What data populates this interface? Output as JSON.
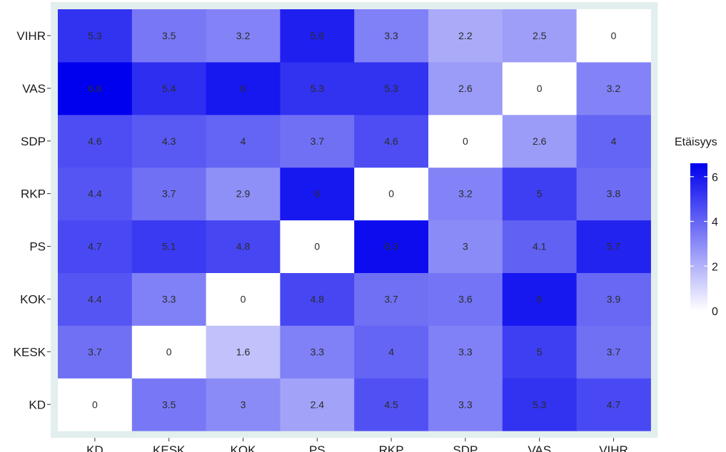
{
  "chart_data": {
    "type": "heatmap",
    "x": [
      "KD",
      "KESK",
      "KOK",
      "PS",
      "RKP",
      "SDP",
      "VAS",
      "VIHR"
    ],
    "y": [
      "KD",
      "KESK",
      "KOK",
      "PS",
      "RKP",
      "SDP",
      "VAS",
      "VIHR"
    ],
    "values": [
      [
        0,
        3.5,
        3,
        2.4,
        4.5,
        3.3,
        5.3,
        4.7
      ],
      [
        3.7,
        0,
        1.6,
        3.3,
        4,
        3.3,
        5,
        3.7
      ],
      [
        4.4,
        3.3,
        0,
        4.8,
        3.7,
        3.6,
        6,
        3.9
      ],
      [
        4.7,
        5.1,
        4.8,
        0,
        6.3,
        3,
        4.1,
        5.7
      ],
      [
        4.4,
        3.7,
        2.9,
        6,
        0,
        3.2,
        5,
        3.8
      ],
      [
        4.6,
        4.3,
        4,
        3.7,
        4.6,
        0,
        2.6,
        4
      ],
      [
        6.6,
        5.4,
        6,
        5.3,
        5.3,
        2.6,
        0,
        3.2
      ],
      [
        5.3,
        3.5,
        3.2,
        5.8,
        3.3,
        2.2,
        2.5,
        0
      ]
    ],
    "legend": {
      "title": "Etäisyys",
      "ticks": [
        0,
        2,
        4,
        6
      ],
      "range": [
        0,
        6.6
      ],
      "low_color": "#ffffff",
      "high_color": "#0000ee"
    },
    "grid": false,
    "panel_background": "#e3eeee"
  }
}
